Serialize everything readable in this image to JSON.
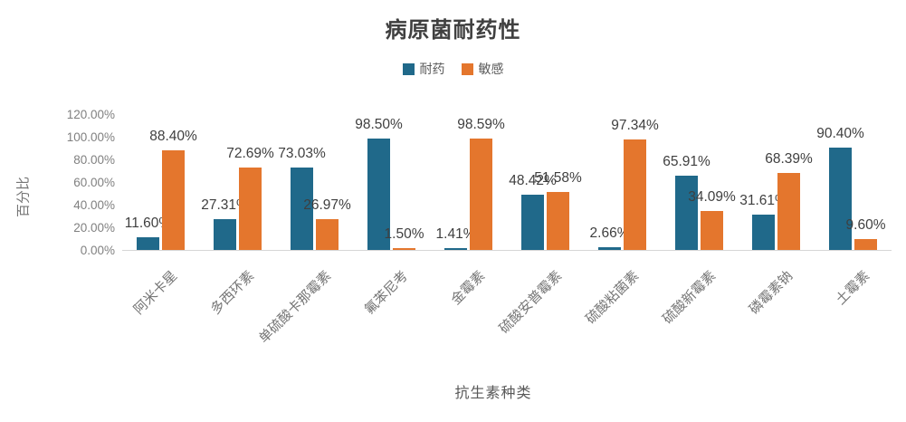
{
  "title": "病原菌耐药性",
  "legend": {
    "resistant": "耐药",
    "sensitive": "敏感"
  },
  "colors": {
    "resistant": "#20698A",
    "sensitive": "#E4762D",
    "title_text": "#404040",
    "data_label_text": "#3F3F3F",
    "axis_tick_text": "#808080",
    "axis_line": "#D6D6D6"
  },
  "chart_data": {
    "type": "bar",
    "title": "病原菌耐药性",
    "xlabel": "抗生素种类",
    "ylabel": "百分比",
    "categories": [
      "阿米卡星",
      "多西环素",
      "单硫酸卡那霉素",
      "氟苯尼考",
      "金霉素",
      "硫酸安普霉素",
      "硫酸粘菌素",
      "硫酸新霉素",
      "磷霉素钠",
      "土霉素"
    ],
    "series": [
      {
        "name": "耐药",
        "color": "#20698A",
        "values": [
          11.6,
          27.31,
          73.03,
          98.5,
          1.41,
          48.42,
          2.66,
          65.91,
          31.61,
          90.4
        ],
        "labels": [
          "11.60%",
          "27.31%",
          "73.03%",
          "98.50%",
          "1.41%",
          "48.42%",
          "2.66%",
          "65.91%",
          "31.61%",
          "90.40%"
        ]
      },
      {
        "name": "敏感",
        "color": "#E4762D",
        "values": [
          88.4,
          72.69,
          26.97,
          1.5,
          98.59,
          51.58,
          97.34,
          34.09,
          68.39,
          9.6
        ],
        "labels": [
          "88.40%",
          "72.69%",
          "26.97%",
          "1.50%",
          "98.59%",
          "51.58%",
          "97.34%",
          "34.09%",
          "68.39%",
          "9.60%"
        ]
      }
    ],
    "yticks": [
      "0.00%",
      "20.00%",
      "40.00%",
      "60.00%",
      "80.00%",
      "100.00%",
      "120.00%"
    ],
    "ylim": [
      0,
      120
    ],
    "grid": false,
    "legend_position": "top",
    "data_labels": "outside-end",
    "x_tick_rotation_deg": 45
  }
}
